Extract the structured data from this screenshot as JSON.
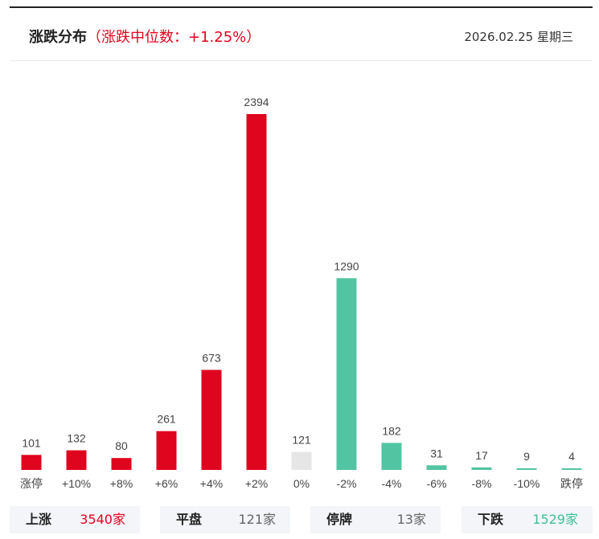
{
  "header": {
    "title": "涨跌分布",
    "subtitle": "（涨跌中位数：+1.25%）",
    "date": "2026.02.25 星期三"
  },
  "colors": {
    "up": "#e0051f",
    "flat": "#e6e6e6",
    "down": "#53c4a2"
  },
  "chart_data": {
    "type": "bar",
    "title": "涨跌分布",
    "categories": [
      "涨停",
      "+10%",
      "+8%",
      "+6%",
      "+4%",
      "+2%",
      "0%",
      "-2%",
      "-4%",
      "-6%",
      "-8%",
      "-10%",
      "跌停"
    ],
    "values": [
      101,
      132,
      80,
      261,
      673,
      2394,
      121,
      1290,
      182,
      31,
      17,
      9,
      4
    ],
    "groups": [
      "up",
      "up",
      "up",
      "up",
      "up",
      "up",
      "flat",
      "down",
      "down",
      "down",
      "down",
      "down",
      "down"
    ],
    "ylim": [
      0,
      2394
    ],
    "xlabel": "",
    "ylabel": "",
    "grid": false
  },
  "summary": [
    {
      "label": "上涨",
      "value": "3540家",
      "tone": "red"
    },
    {
      "label": "平盘",
      "value": "121家",
      "tone": "grey"
    },
    {
      "label": "停牌",
      "value": "13家",
      "tone": "grey"
    },
    {
      "label": "下跌",
      "value": "1529家",
      "tone": "green"
    }
  ]
}
